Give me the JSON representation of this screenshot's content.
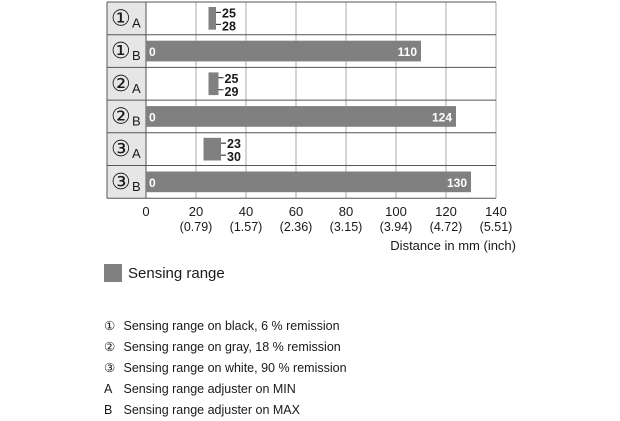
{
  "colors": {
    "bar": "#808080",
    "grid": "#aaaaaa",
    "label_cell": "#e6e6e6",
    "text": "#1a1a1a"
  },
  "chart_data": {
    "type": "bar",
    "orientation": "horizontal",
    "xlabel": "Distance in mm (inch)",
    "xlim": [
      0,
      140
    ],
    "x_ticks": [
      {
        "value": 0,
        "mm": "0",
        "inch": ""
      },
      {
        "value": 20,
        "mm": "20",
        "inch": "(0.79)"
      },
      {
        "value": 40,
        "mm": "40",
        "inch": "(1.57)"
      },
      {
        "value": 60,
        "mm": "60",
        "inch": "(2.36)"
      },
      {
        "value": 80,
        "mm": "80",
        "inch": "(3.15)"
      },
      {
        "value": 100,
        "mm": "100",
        "inch": "(3.94)"
      },
      {
        "value": 120,
        "mm": "120",
        "inch": "(4.72)"
      },
      {
        "value": 140,
        "mm": "140",
        "inch": "(5.51)"
      }
    ],
    "grid": true,
    "rows": [
      {
        "num": "①",
        "sub": "A",
        "start": 25,
        "end": 28,
        "label_start": "25",
        "label_end": "28",
        "style": "bracket"
      },
      {
        "num": "①",
        "sub": "B",
        "start": 0,
        "end": 110,
        "label_start": "0",
        "label_end": "110",
        "style": "inside"
      },
      {
        "num": "②",
        "sub": "A",
        "start": 25,
        "end": 29,
        "label_start": "25",
        "label_end": "29",
        "style": "bracket"
      },
      {
        "num": "②",
        "sub": "B",
        "start": 0,
        "end": 124,
        "label_start": "0",
        "label_end": "124",
        "style": "inside"
      },
      {
        "num": "③",
        "sub": "A",
        "start": 23,
        "end": 30,
        "label_start": "23",
        "label_end": "30",
        "style": "bracket"
      },
      {
        "num": "③",
        "sub": "B",
        "start": 0,
        "end": 130,
        "label_start": "0",
        "label_end": "130",
        "style": "inside"
      }
    ],
    "legend": {
      "label": "Sensing range"
    }
  },
  "notes": [
    {
      "mark": "①",
      "text": "Sensing range on black, 6 % remission"
    },
    {
      "mark": "②",
      "text": "Sensing range on gray, 18 % remission"
    },
    {
      "mark": "③",
      "text": "Sensing range on white, 90 % remission"
    },
    {
      "mark": "A",
      "text": "Sensing range adjuster on MIN"
    },
    {
      "mark": "B",
      "text": "Sensing range adjuster on MAX"
    }
  ]
}
